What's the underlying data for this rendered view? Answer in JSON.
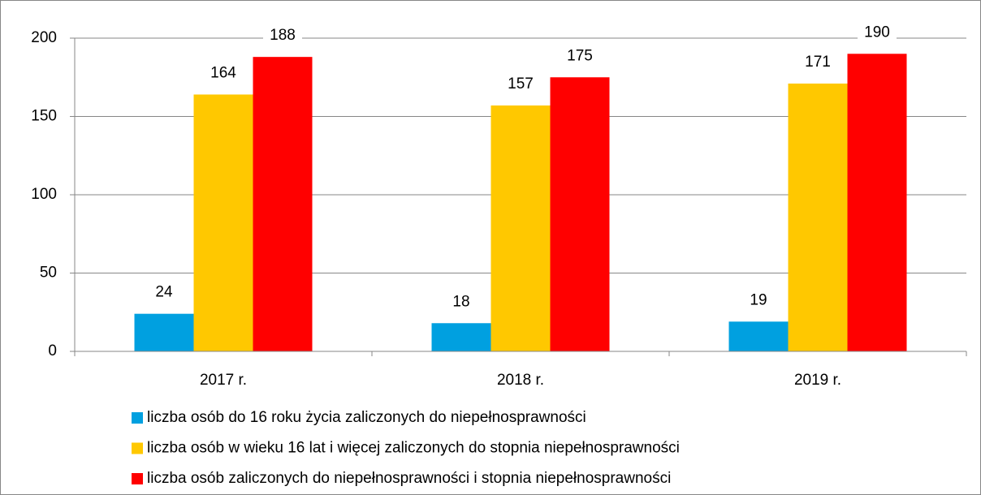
{
  "chart_data": {
    "type": "bar",
    "categories": [
      "2017 r.",
      "2018 r.",
      "2019 r."
    ],
    "series": [
      {
        "name": "liczba osób do 16 roku życia zaliczonych do niepełnosprawności",
        "color": "#00a0e0",
        "values": [
          24,
          18,
          19
        ]
      },
      {
        "name": "liczba osób w wieku 16 lat i więcej zaliczonych do stopnia niepełnosprawności",
        "color": "#ffc800",
        "values": [
          164,
          157,
          171
        ]
      },
      {
        "name": "liczba osób zaliczonych do niepełnosprawności i stopnia niepełnosprawności",
        "color": "#ff0000",
        "values": [
          188,
          175,
          190
        ]
      }
    ],
    "ylim": [
      0,
      200
    ],
    "yticks": [
      0,
      50,
      100,
      150,
      200
    ],
    "grid": true,
    "legend": "bottom"
  }
}
